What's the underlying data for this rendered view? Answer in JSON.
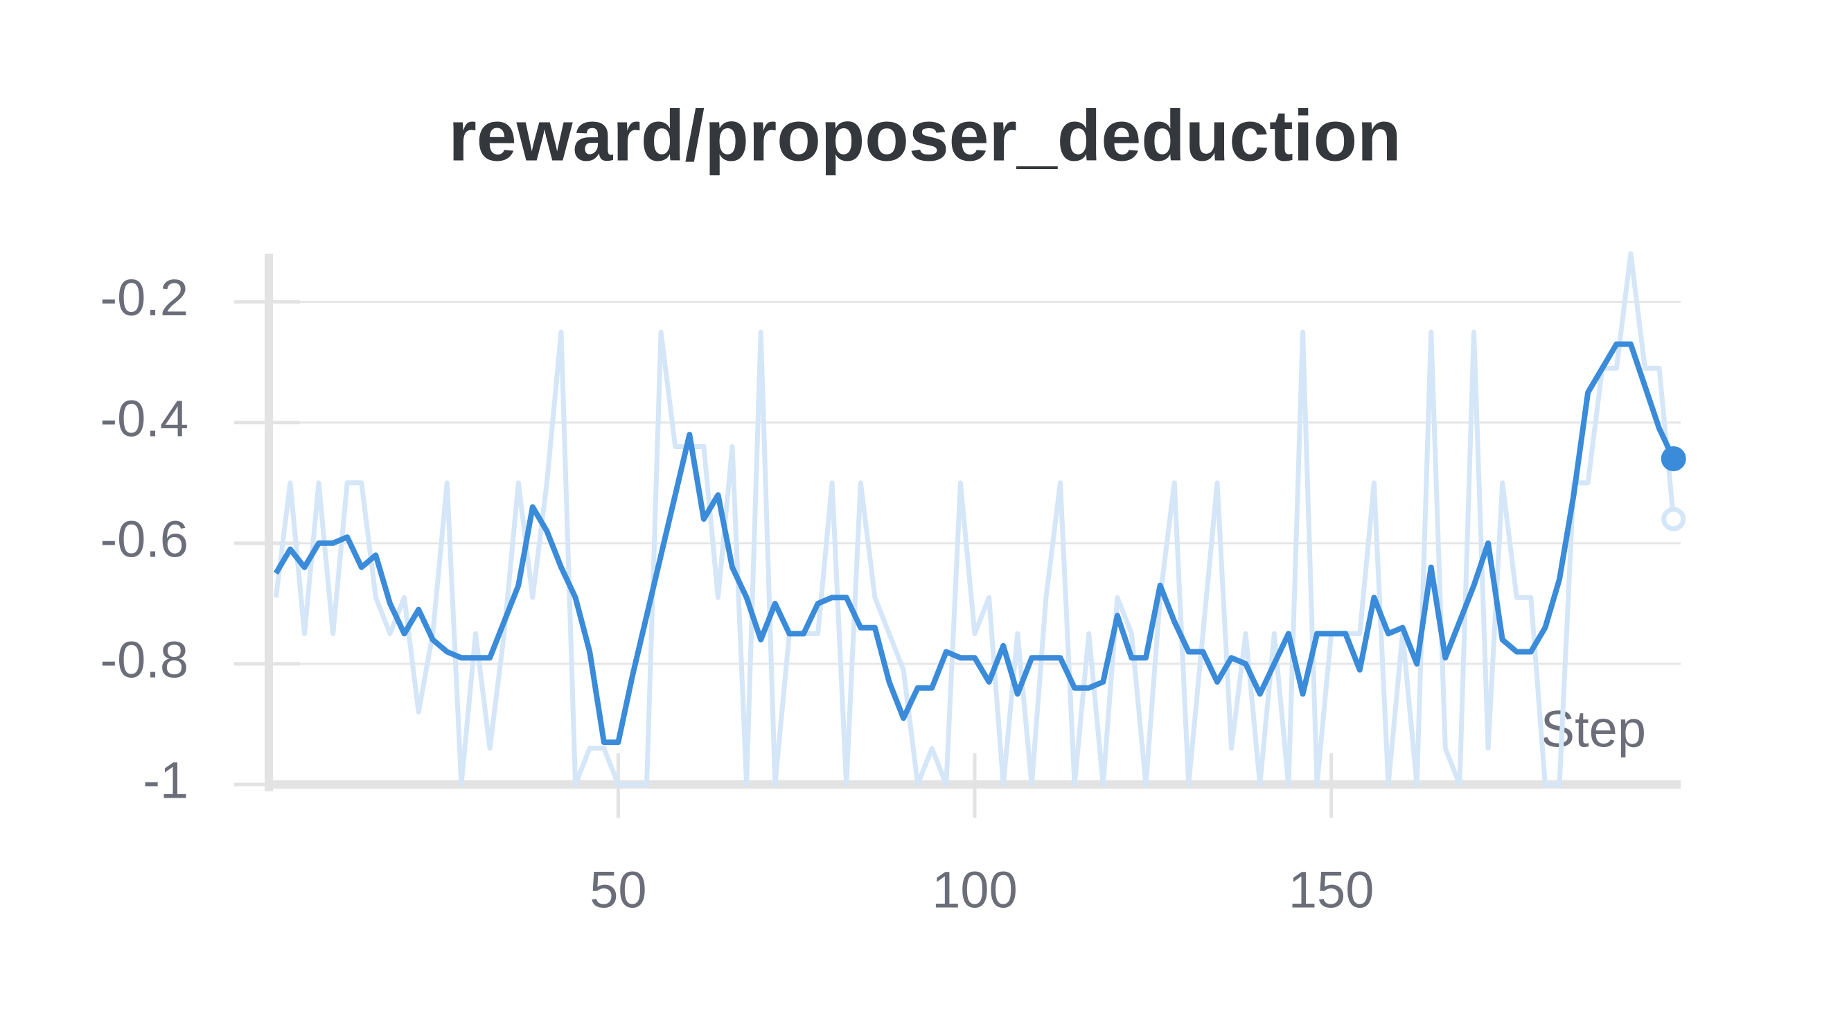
{
  "chart_data": {
    "type": "line",
    "title": "reward/proposer_deduction",
    "x_label": "Step",
    "x": [
      2,
      4,
      6,
      8,
      10,
      12,
      14,
      16,
      18,
      20,
      22,
      24,
      26,
      28,
      30,
      32,
      34,
      36,
      38,
      40,
      42,
      44,
      46,
      48,
      50,
      52,
      54,
      56,
      58,
      60,
      62,
      64,
      66,
      68,
      70,
      72,
      74,
      76,
      78,
      80,
      82,
      84,
      86,
      88,
      90,
      92,
      94,
      96,
      98,
      100,
      102,
      104,
      106,
      108,
      110,
      112,
      114,
      116,
      118,
      120,
      122,
      124,
      126,
      128,
      130,
      132,
      134,
      136,
      138,
      140,
      142,
      144,
      146,
      148,
      150,
      152,
      154,
      156,
      158,
      160,
      162,
      164,
      166,
      168,
      170,
      172,
      174,
      176,
      178,
      180,
      182,
      184,
      186,
      188,
      190,
      192,
      194,
      196,
      198
    ],
    "series": [
      {
        "color": "#d4e6f7",
        "values": [
          -0.69,
          -0.5,
          -0.75,
          -0.5,
          -0.75,
          -0.5,
          -0.5,
          -0.69,
          -0.75,
          -0.69,
          -0.88,
          -0.75,
          -0.5,
          -1,
          -0.75,
          -0.94,
          -0.75,
          -0.5,
          -0.69,
          -0.5,
          -0.25,
          -1,
          -0.94,
          -0.94,
          -1,
          -1,
          -1,
          -0.25,
          -0.44,
          -0.44,
          -0.44,
          -0.69,
          -0.44,
          -1,
          -0.25,
          -1,
          -0.75,
          -0.75,
          -0.75,
          -0.5,
          -1,
          -0.5,
          -0.69,
          -0.75,
          -0.81,
          -1,
          -0.94,
          -1,
          -0.5,
          -0.75,
          -0.69,
          -1,
          -0.75,
          -1,
          -0.69,
          -0.5,
          -1,
          -0.75,
          -1,
          -0.69,
          -0.75,
          -1,
          -0.69,
          -0.5,
          -1,
          -0.75,
          -0.5,
          -0.94,
          -0.75,
          -1,
          -0.75,
          -1,
          -0.25,
          -1,
          -0.75,
          -0.75,
          -0.75,
          -0.5,
          -1,
          -0.75,
          -1,
          -0.25,
          -0.94,
          -1,
          -0.25,
          -0.94,
          -0.5,
          -0.69,
          -0.69,
          -1,
          -1,
          -0.5,
          -0.5,
          -0.31,
          -0.31,
          -0.12,
          -0.31,
          -0.31,
          -0.56
        ]
      },
      {
        "color": "#3a8bd9",
        "values": [
          -0.65,
          -0.61,
          -0.64,
          -0.6,
          -0.6,
          -0.59,
          -0.64,
          -0.62,
          -0.7,
          -0.75,
          -0.71,
          -0.76,
          -0.78,
          -0.79,
          -0.79,
          -0.79,
          -0.73,
          -0.67,
          -0.54,
          -0.58,
          -0.64,
          -0.69,
          -0.78,
          -0.93,
          -0.93,
          -0.82,
          -0.72,
          -0.62,
          -0.52,
          -0.42,
          -0.56,
          -0.52,
          -0.64,
          -0.69,
          -0.76,
          -0.7,
          -0.75,
          -0.75,
          -0.7,
          -0.69,
          -0.69,
          -0.74,
          -0.74,
          -0.83,
          -0.89,
          -0.84,
          -0.84,
          -0.78,
          -0.79,
          -0.79,
          -0.83,
          -0.77,
          -0.85,
          -0.79,
          -0.79,
          -0.79,
          -0.84,
          -0.84,
          -0.83,
          -0.72,
          -0.79,
          -0.79,
          -0.67,
          -0.73,
          -0.78,
          -0.78,
          -0.83,
          -0.79,
          -0.8,
          -0.85,
          -0.8,
          -0.75,
          -0.85,
          -0.75,
          -0.75,
          -0.75,
          -0.81,
          -0.69,
          -0.75,
          -0.74,
          -0.8,
          -0.64,
          -0.79,
          -0.73,
          -0.67,
          -0.6,
          -0.76,
          -0.78,
          -0.78,
          -0.74,
          -0.66,
          -0.52,
          -0.35,
          -0.31,
          -0.27,
          -0.27,
          -0.34,
          -0.41,
          -0.46
        ]
      }
    ],
    "xlim": [
      1,
      199
    ],
    "ylim": [
      -1,
      -0.12
    ],
    "xticks": [
      50,
      100,
      150
    ],
    "yticks": [
      -0.2,
      -0.4,
      -0.6,
      -0.8,
      -1
    ],
    "grid": true
  }
}
